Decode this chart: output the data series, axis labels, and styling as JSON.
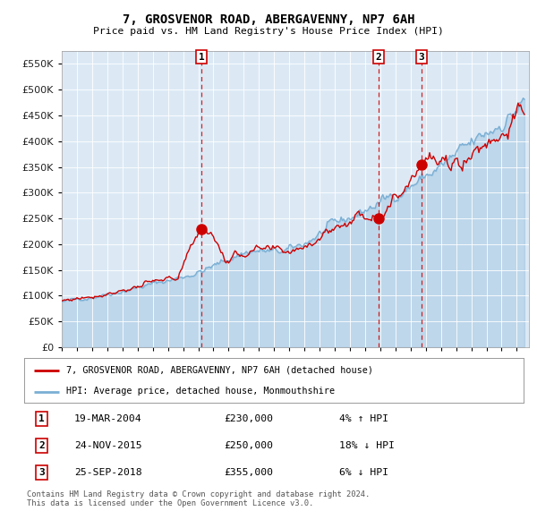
{
  "title": "7, GROSVENOR ROAD, ABERGAVENNY, NP7 6AH",
  "subtitle": "Price paid vs. HM Land Registry's House Price Index (HPI)",
  "bg_color": "#dce9f5",
  "red_line_label": "7, GROSVENOR ROAD, ABERGAVENNY, NP7 6AH (detached house)",
  "blue_line_label": "HPI: Average price, detached house, Monmouthshire",
  "sales": [
    {
      "num": 1,
      "date_num": 2004.22,
      "price": 230000,
      "label": "19-MAR-2004",
      "pct": "4%",
      "dir": "↑"
    },
    {
      "num": 2,
      "date_num": 2015.9,
      "price": 250000,
      "label": "24-NOV-2015",
      "pct": "18%",
      "dir": "↓"
    },
    {
      "num": 3,
      "date_num": 2018.73,
      "price": 355000,
      "label": "25-SEP-2018",
      "pct": "6%",
      "dir": "↓"
    }
  ],
  "ylim": [
    0,
    575000
  ],
  "xlim_start": 1995.0,
  "xlim_end": 2025.8,
  "footer": "Contains HM Land Registry data © Crown copyright and database right 2024.\nThis data is licensed under the Open Government Licence v3.0.",
  "red_color": "#cc0000",
  "blue_color": "#7aafd4",
  "dashed_red": "#cc0000",
  "sale_info": [
    [
      1,
      "19-MAR-2004",
      "£230,000",
      "4% ↑ HPI"
    ],
    [
      2,
      "24-NOV-2015",
      "£250,000",
      "18% ↓ HPI"
    ],
    [
      3,
      "25-SEP-2018",
      "£355,000",
      "6% ↓ HPI"
    ]
  ]
}
